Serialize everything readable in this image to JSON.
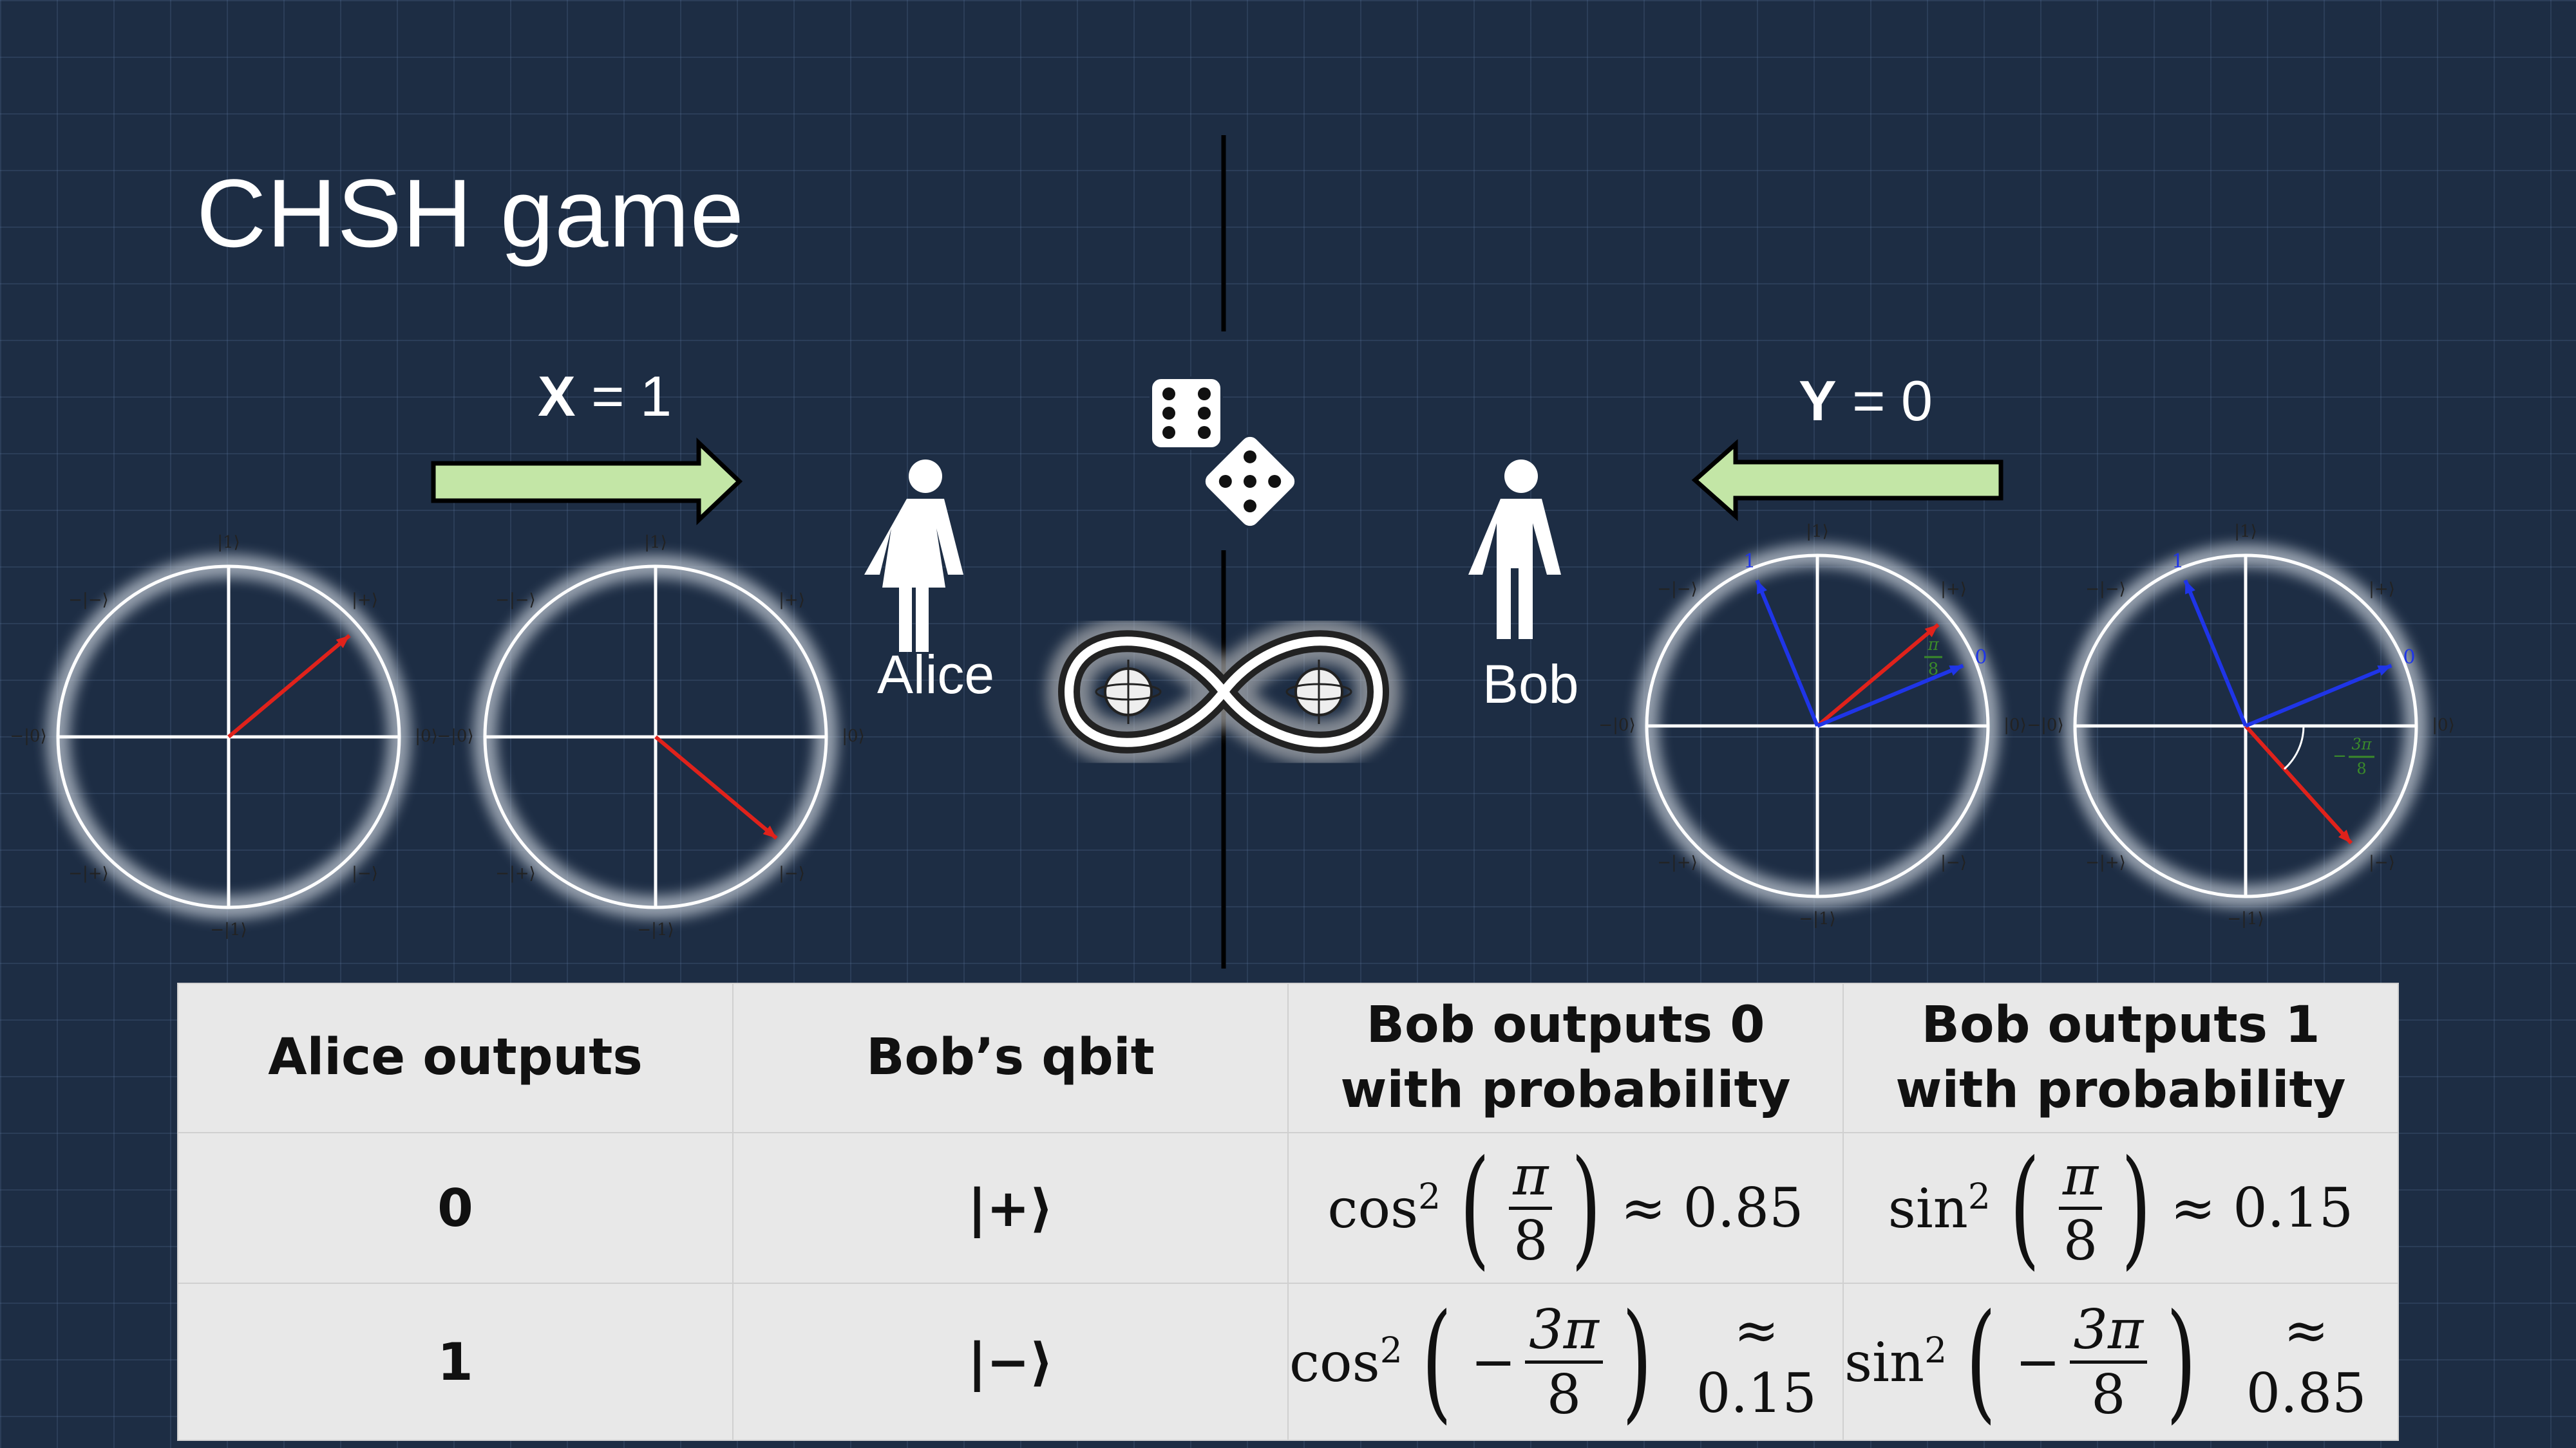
{
  "title": "CHSH game",
  "alice": {
    "name": "Alice",
    "input_var": "X",
    "input_val": "= 1"
  },
  "bob": {
    "name": "Bob",
    "input_var": "Y",
    "input_val": "= 0"
  },
  "bloch_labels": {
    "ket1": "|1⟩",
    "ketminus1": "−|1⟩",
    "ket0": "|0⟩",
    "ketminus0": "−|0⟩",
    "ketplus": "|+⟩",
    "ketminusplus": "−|+⟩",
    "ketminus": "|−⟩",
    "ketminusminus": "−|−⟩",
    "axis_one": "1",
    "axis_zero": "0",
    "angle_pi": "π",
    "angle_3pi": "3π",
    "angle_den": "8",
    "neg": "−"
  },
  "colors": {
    "background": "#1d2d44",
    "arrow_fill": "#c3e6a6",
    "red_vector": "#e0221b",
    "blue_vector": "#1f35e8",
    "table_bg": "#e8e8e8"
  },
  "table": {
    "headers": [
      "Alice outputs",
      "Bob’s qbit",
      "Bob outputs 0 with probability",
      "Bob outputs 1 with probability"
    ],
    "rows": [
      {
        "alice": "0",
        "qbit": "|+⟩",
        "p0": {
          "fn": "cos",
          "sign": "",
          "num": "π",
          "den": "8",
          "approx": "≈ 0.85"
        },
        "p1": {
          "fn": "sin",
          "sign": "",
          "num": "π",
          "den": "8",
          "approx": "≈ 0.15"
        }
      },
      {
        "alice": "1",
        "qbit": "|−⟩",
        "p0": {
          "fn": "cos",
          "sign": "−",
          "num": "3π",
          "den": "8",
          "approx": "≈ 0.15"
        },
        "p1": {
          "fn": "sin",
          "sign": "−",
          "num": "3π",
          "den": "8",
          "approx": "≈ 0.85"
        }
      }
    ]
  }
}
